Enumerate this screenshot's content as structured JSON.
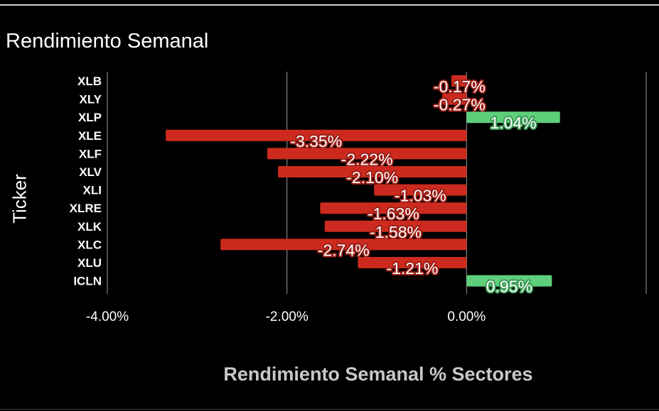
{
  "chart_data": {
    "type": "bar",
    "orientation": "horizontal",
    "title": "Rendimiento Semanal",
    "xlabel": "Rendimiento Semanal % Sectores",
    "ylabel": "Ticker",
    "categories": [
      "XLB",
      "XLY",
      "XLP",
      "XLE",
      "XLF",
      "XLV",
      "XLI",
      "XLRE",
      "XLK",
      "XLC",
      "XLU",
      "ICLN"
    ],
    "values": [
      -0.17,
      -0.27,
      1.04,
      -3.35,
      -2.22,
      -2.1,
      -1.03,
      -1.63,
      -1.58,
      -2.74,
      -1.21,
      0.95
    ],
    "data_labels": [
      "-0.17%",
      "-0.27%",
      "1.04%",
      "-3.35%",
      "-2.22%",
      "-2.10%",
      "-1.03%",
      "-1.63%",
      "-1.58%",
      "-2.74%",
      "-1.21%",
      "0.95%"
    ],
    "xlim": [
      -4.0,
      2.0
    ],
    "xticks": [
      -4.0,
      -2.0,
      0.0
    ],
    "xtick_labels": [
      "-4.00%",
      "-2.00%",
      "0.00%"
    ],
    "grid": true,
    "legend": "none",
    "colors": {
      "positive": "#5ecf7a",
      "negative": "#cc2a1e",
      "positive_label_outline": "#3b9a55",
      "negative_label_outline": "#9a1f17",
      "background": "#000000",
      "grid": "#9a9a9a"
    }
  }
}
